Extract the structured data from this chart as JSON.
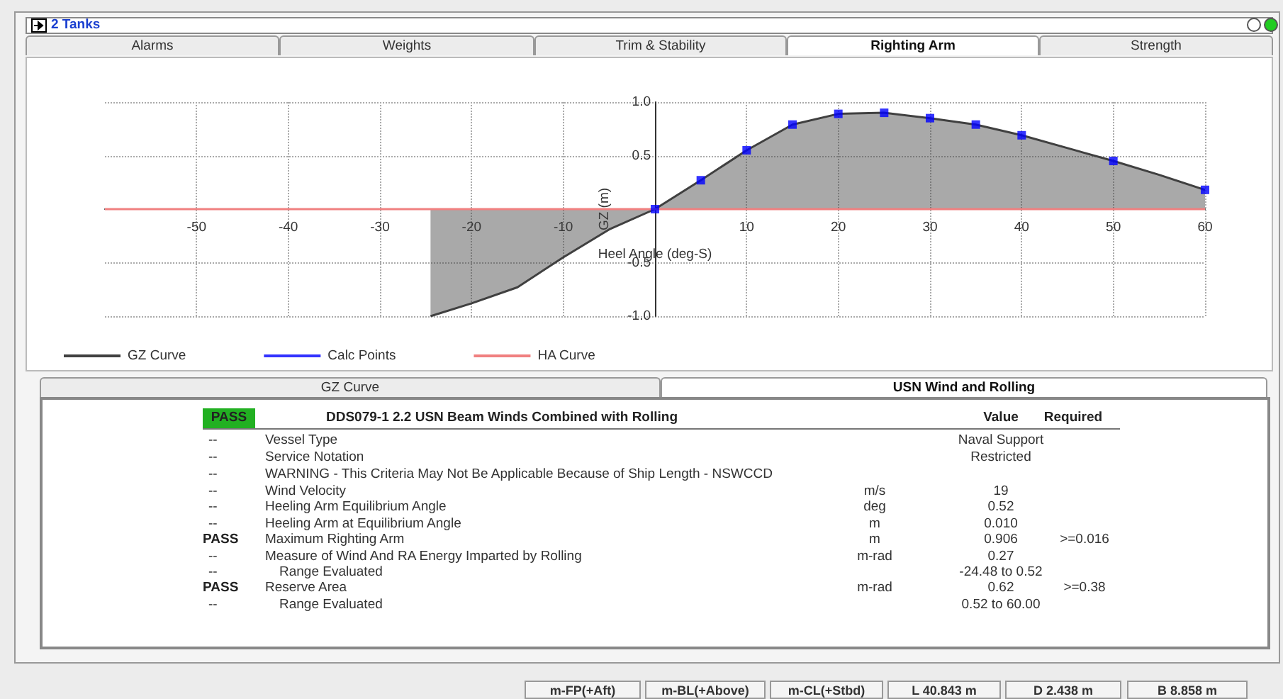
{
  "chart_data": {
    "type": "line",
    "xlabel": "Heel Angle (deg-S)",
    "ylabel": "GZ (m)",
    "xlim": [
      -60,
      60
    ],
    "ylim": [
      -1,
      1
    ],
    "xticks": [
      -50,
      -40,
      -30,
      -20,
      -10,
      10,
      20,
      30,
      40,
      50,
      60
    ],
    "yticks": [
      {
        "value": -1,
        "label": "-1.0"
      },
      {
        "value": -0.5,
        "label": "-0.5"
      },
      {
        "value": 0.5,
        "label": "0.5"
      },
      {
        "value": 1,
        "label": "1.0"
      }
    ],
    "grid": true,
    "legend": "bottom left",
    "series": [
      {
        "name": "GZ Curve",
        "type": "area",
        "color": "#404040",
        "x": [
          -24.48,
          -20,
          -15,
          -10,
          -5,
          0,
          5,
          10,
          15,
          20,
          25,
          30,
          35,
          40,
          45,
          50,
          55,
          60
        ],
        "values": [
          -1.0,
          -0.88,
          -0.73,
          -0.45,
          -0.19,
          0,
          0.27,
          0.55,
          0.79,
          0.89,
          0.9,
          0.85,
          0.79,
          0.69,
          0.57,
          0.45,
          0.32,
          0.18
        ]
      },
      {
        "name": "Calc Points",
        "type": "scatter",
        "marker": "square",
        "color": "#0000ff",
        "x": [
          0,
          5,
          10,
          15,
          20,
          25,
          30,
          35,
          40,
          50,
          60
        ],
        "values": [
          0,
          0.27,
          0.55,
          0.79,
          0.89,
          0.9,
          0.85,
          0.79,
          0.69,
          0.45,
          0.18
        ]
      },
      {
        "name": "HA Curve",
        "color": "#f08080",
        "x": [
          -60,
          60
        ],
        "values": [
          0,
          0
        ]
      }
    ],
    "annotations": [
      "2 Tanks",
      "Alarms",
      "Weights",
      "Trim & Stability",
      "Righting Arm",
      "Strength",
      "GZ Curve",
      "USN Wind and Rolling",
      "PASS",
      "DDS079-1  2.2  USN Beam Winds Combined with Rolling",
      "Value",
      "Required",
      "--",
      "Vessel Type",
      "Naval Support",
      "--",
      "Service Notation",
      "Restricted",
      "--",
      "WARNING - This Criteria May Not Be Applicable Because of Ship Length - NSWCCD",
      "--",
      "Wind Velocity",
      "m/s",
      "19",
      "--",
      "Heeling Arm Equilibrium Angle",
      "deg",
      "0.52",
      "--",
      "Heeling Arm at Equilibrium Angle",
      "m",
      "0.010",
      "PASS",
      "Maximum Righting Arm",
      "m",
      "0.906",
      ">=0.016",
      "--",
      "Measure of Wind And RA Energy Imparted by Rolling",
      "m-rad",
      "0.27",
      "--",
      "Range Evaluated",
      "-24.48 to 0.52",
      "PASS",
      "Reserve Area",
      "m-rad",
      "0.62",
      ">=0.38",
      "--",
      "Range Evaluated",
      "0.52 to 60.00",
      "m-FP(+Aft)",
      "m-BL(+Above)",
      "m-CL(+Stbd)",
      "L 40.843 m",
      "D 2.438 m",
      "B 8.858 m"
    ]
  }
}
